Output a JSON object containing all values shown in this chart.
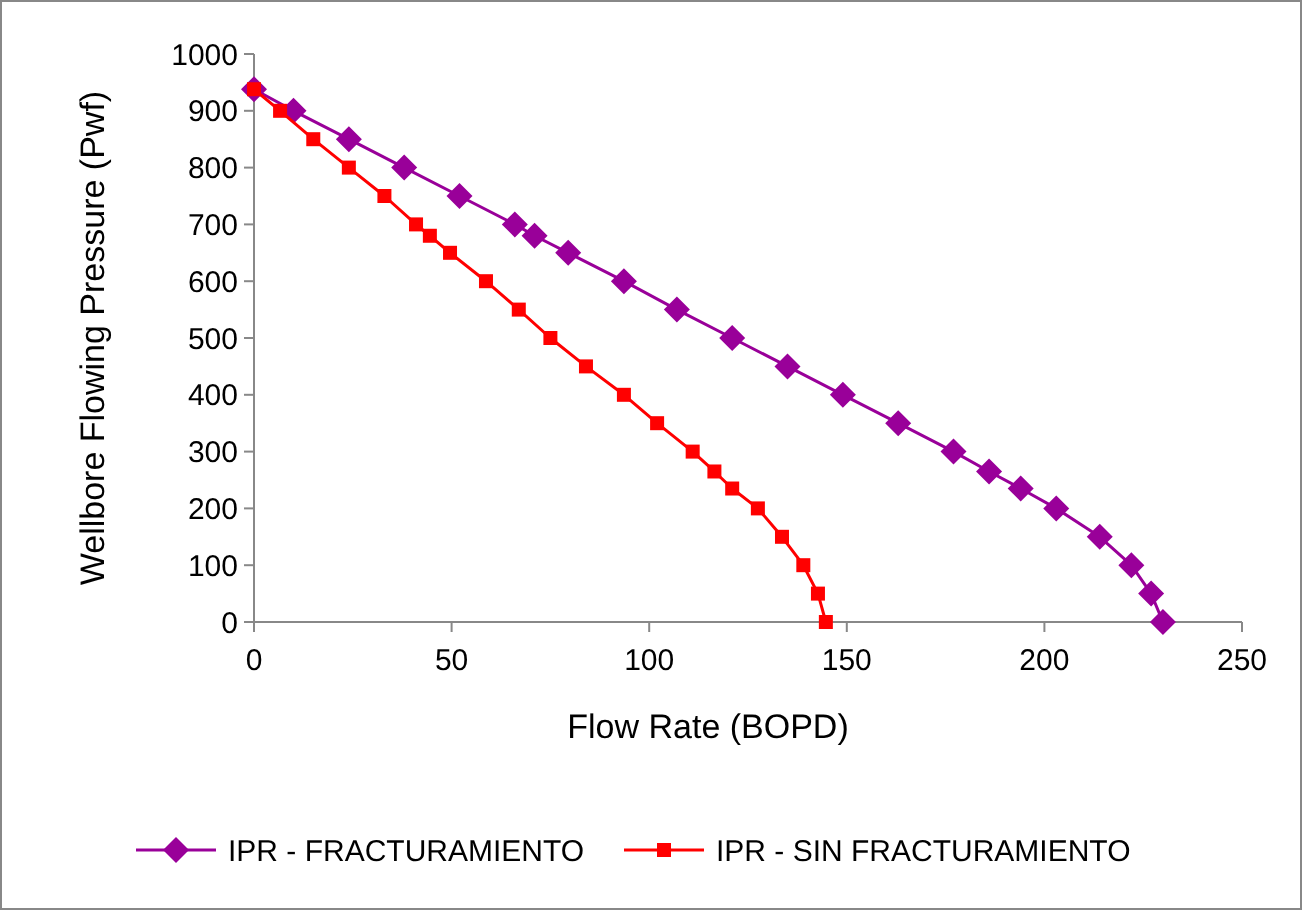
{
  "chart_data": {
    "type": "line",
    "xlabel": "Flow Rate (BOPD)",
    "ylabel": "Wellbore Flowing Pressure (Pwf)",
    "xlim": [
      0,
      250
    ],
    "xticks": [
      0,
      50,
      100,
      150,
      200,
      250
    ],
    "ylim": [
      0,
      1000
    ],
    "yticks": [
      0,
      100,
      200,
      300,
      400,
      500,
      600,
      700,
      800,
      900,
      1000
    ],
    "grid": false,
    "legend": "bottom",
    "line_style": "solid",
    "series": [
      {
        "name": "IPR - FRACTURAMIENTO",
        "color": "#990099",
        "marker": "diamond",
        "x": [
          0,
          10,
          24,
          38,
          52,
          66,
          71,
          79.5,
          93.6,
          107,
          121,
          135,
          149,
          163,
          177,
          186,
          194,
          203,
          214,
          222,
          227,
          230
        ],
        "values": [
          938,
          900,
          850,
          800,
          750,
          700,
          680,
          650,
          600,
          550,
          500,
          450,
          400,
          350,
          300,
          265,
          235,
          200,
          150,
          100,
          50,
          0
        ]
      },
      {
        "name": "IPR - SIN FRACTURAMIENTO",
        "color": "#ff0000",
        "marker": "square",
        "x": [
          0,
          6.6,
          15,
          24,
          33,
          41,
          44.5,
          49.6,
          58.7,
          67,
          75,
          84,
          93.6,
          102,
          111,
          116.5,
          121,
          127.5,
          133.6,
          139,
          142.7,
          144.7
        ],
        "values": [
          938,
          900,
          850,
          800,
          750,
          700,
          680,
          650,
          600,
          550,
          500,
          450,
          400,
          350,
          300,
          265,
          235,
          200,
          150,
          100,
          50,
          0
        ]
      }
    ]
  }
}
